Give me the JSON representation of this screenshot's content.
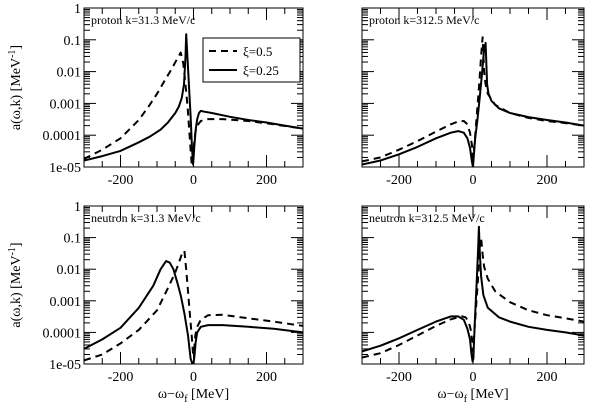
{
  "chart_data": {
    "type": "line",
    "xlim": [
      -300,
      300
    ],
    "ylim": [
      1e-05,
      1
    ],
    "y_scale": "log",
    "x_ticks": [
      -200,
      0,
      200
    ],
    "x_tick_labels": [
      "-200",
      "0",
      "200"
    ],
    "y_ticks": [
      1e-05,
      0.0001,
      0.001,
      0.01,
      0.1,
      1
    ],
    "y_tick_labels": [
      "1e-05",
      "0.0001",
      "0.001",
      "0.01",
      "0.1",
      "1"
    ],
    "ylabel": "a(ω,k) [MeV⁻¹]",
    "xlabel": "ω−ω_f [MeV]",
    "grid": false,
    "legend": {
      "placement": "top-right of top-left panel",
      "entries": [
        {
          "label": "ξ=0.5",
          "style": "dashed"
        },
        {
          "label": "ξ=0.25",
          "style": "solid"
        }
      ]
    },
    "panels": [
      {
        "label": "proton k=31.3 MeV/c",
        "show_y_tick_labels": true,
        "show_x_tick_labels": false,
        "series": [
          {
            "style": "dashed",
            "x": [
              -300,
              -250,
              -200,
              -150,
              -120,
              -100,
              -80,
              -60,
              -45,
              -35,
              -28,
              -22,
              -16,
              -10,
              -5,
              -1,
              2,
              5,
              10,
              20,
              40,
              80,
              150,
              220,
              300
            ],
            "y": [
              1.8e-05,
              3.5e-05,
              8e-05,
              0.0003,
              0.0009,
              0.002,
              0.005,
              0.012,
              0.025,
              0.04,
              0.018,
              0.004,
              0.0007,
              8e-05,
              1.2e-05,
              2e-05,
              6e-05,
              0.00012,
              0.0002,
              0.00028,
              0.00032,
              0.00032,
              0.00028,
              0.00022,
              0.00016
            ]
          },
          {
            "style": "solid",
            "x": [
              -300,
              -250,
              -200,
              -150,
              -120,
              -90,
              -70,
              -50,
              -40,
              -32,
              -26,
              -22,
              -20,
              -16,
              -12,
              -8,
              -4,
              -1,
              2,
              6,
              10,
              15,
              20,
              30,
              50,
              100,
              150,
              200,
              250,
              300
            ],
            "y": [
              1.6e-05,
              2.2e-05,
              3.2e-05,
              6e-05,
              9e-05,
              0.00015,
              0.00025,
              0.0005,
              0.0008,
              0.0015,
              0.004,
              0.03,
              0.15,
              0.02,
              0.003,
              0.0004,
              4e-05,
              1.2e-05,
              4e-05,
              0.00015,
              0.00032,
              0.0005,
              0.00058,
              0.00055,
              0.0005,
              0.00038,
              0.0003,
              0.00025,
              0.0002,
              0.00016
            ]
          }
        ]
      },
      {
        "label": "proton k=312.5 MeV/c",
        "show_y_tick_labels": false,
        "show_x_tick_labels": false,
        "series": [
          {
            "style": "dashed",
            "x": [
              -300,
              -250,
              -200,
              -150,
              -100,
              -60,
              -40,
              -25,
              -15,
              -8,
              -3,
              0,
              4,
              10,
              16,
              22,
              26,
              30,
              34,
              40,
              60,
              100,
              150,
              200,
              250,
              300
            ],
            "y": [
              1.5e-05,
              2e-05,
              3.5e-05,
              6.5e-05,
              0.00013,
              0.00022,
              0.00027,
              0.00028,
              0.00022,
              0.00012,
              5e-05,
              2e-05,
              5e-05,
              0.0004,
              0.003,
              0.03,
              0.12,
              0.01,
              0.004,
              0.002,
              0.0009,
              0.0005,
              0.00035,
              0.00028,
              0.00024,
              0.0002
            ]
          },
          {
            "style": "solid",
            "x": [
              -300,
              -250,
              -200,
              -150,
              -100,
              -60,
              -40,
              -25,
              -15,
              -8,
              -3,
              0,
              2,
              6,
              12,
              18,
              24,
              30,
              34,
              38,
              42,
              50,
              70,
              100,
              150,
              200,
              250,
              300
            ],
            "y": [
              1.2e-05,
              1.6e-05,
              2.5e-05,
              4.3e-05,
              8e-05,
              0.00012,
              0.000135,
              0.00012,
              8e-05,
              4e-05,
              1.5e-05,
              1e-05,
              2e-05,
              8e-05,
              0.0003,
              0.0015,
              0.008,
              0.05,
              0.08,
              0.004,
              0.002,
              0.0012,
              0.0007,
              0.0005,
              0.00037,
              0.0003,
              0.00025,
              0.0002
            ]
          }
        ]
      },
      {
        "label": "neutron k=31.3 MeV/c",
        "show_y_tick_labels": true,
        "show_x_tick_labels": true,
        "series": [
          {
            "style": "dashed",
            "x": [
              -300,
              -250,
              -200,
              -150,
              -100,
              -70,
              -50,
              -40,
              -30,
              -25,
              -20,
              -15,
              -10,
              -5,
              -1,
              2,
              5,
              10,
              20,
              40,
              80,
              150,
              220,
              300
            ],
            "y": [
              1.3e-05,
              2e-05,
              4.5e-05,
              0.00012,
              0.0005,
              0.0025,
              0.008,
              0.016,
              0.035,
              0.038,
              0.01,
              0.002,
              0.0004,
              8e-05,
              2e-05,
              3e-05,
              8e-05,
              0.00015,
              0.00025,
              0.00035,
              0.00036,
              0.00028,
              0.00022,
              0.00016
            ]
          },
          {
            "style": "solid",
            "x": [
              -300,
              -250,
              -200,
              -150,
              -110,
              -90,
              -75,
              -65,
              -55,
              -45,
              -35,
              -25,
              -15,
              -8,
              -3,
              0,
              3,
              6,
              10,
              20,
              40,
              80,
              150,
              220,
              300
            ],
            "y": [
              3e-05,
              6e-05,
              0.00014,
              0.0006,
              0.003,
              0.01,
              0.018,
              0.016,
              0.01,
              0.004,
              0.0015,
              0.0004,
              8e-05,
              1.5e-05,
              8e-06,
              1e-05,
              2e-05,
              5e-05,
              0.0001,
              0.00015,
              0.00017,
              0.00017,
              0.00015,
              0.00013,
              0.0001
            ]
          }
        ]
      },
      {
        "label": "neutron k=312.5 MeV/c",
        "show_y_tick_labels": false,
        "show_x_tick_labels": true,
        "series": [
          {
            "style": "dashed",
            "x": [
              -300,
              -250,
              -200,
              -150,
              -100,
              -60,
              -40,
              -30,
              -20,
              -12,
              -6,
              -2,
              0,
              3,
              8,
              14,
              18,
              22,
              26,
              30,
              40,
              60,
              100,
              150,
              200,
              250,
              300
            ],
            "y": [
              1.6e-05,
              2.2e-05,
              4e-05,
              8e-05,
              0.00016,
              0.00026,
              0.0003,
              0.00032,
              0.0003,
              0.00022,
              0.00012,
              5e-05,
              2.5e-05,
              8e-05,
              0.0006,
              0.006,
              0.05,
              0.1,
              0.03,
              0.012,
              0.005,
              0.002,
              0.0009,
              0.0005,
              0.00035,
              0.00028,
              0.00022
            ]
          },
          {
            "style": "solid",
            "x": [
              -300,
              -250,
              -200,
              -150,
              -100,
              -60,
              -40,
              -25,
              -15,
              -8,
              -4,
              -1,
              1,
              3,
              6,
              10,
              14,
              16,
              18,
              22,
              28,
              40,
              70,
              100,
              150,
              200,
              250,
              300
            ],
            "y": [
              2.5e-05,
              3.8e-05,
              6.5e-05,
              0.00012,
              0.00022,
              0.00032,
              0.00032,
              0.00025,
              0.00013,
              6e-05,
              2e-05,
              1.2e-05,
              1.5e-05,
              6e-05,
              0.0004,
              0.004,
              0.05,
              0.22,
              0.04,
              0.006,
              0.0015,
              0.0006,
              0.0003,
              0.00022,
              0.00015,
              0.00012,
              0.0001,
              8e-05
            ]
          }
        ]
      }
    ]
  }
}
